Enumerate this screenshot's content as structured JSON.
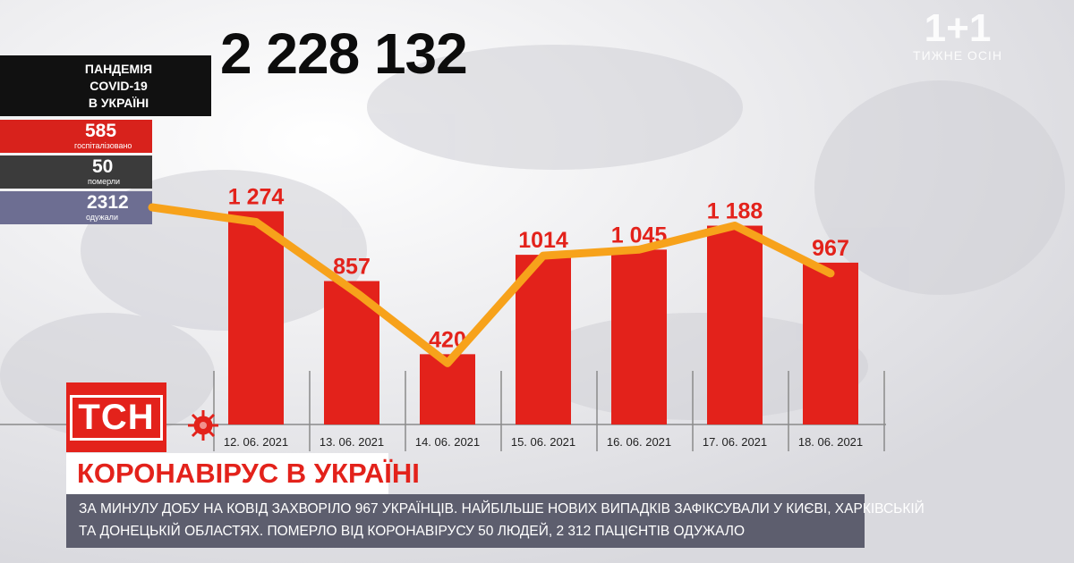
{
  "panel": {
    "heading_lines": [
      "ПАНДЕМІЯ",
      "COVID-19",
      "В УКРАЇНІ"
    ],
    "hospitalized_value": "585",
    "hospitalized_label": "госпіталізовано",
    "died_value": "50",
    "died_label": "померли",
    "recovered_value": "2312",
    "recovered_label": "одужали"
  },
  "total_cases": "2 228 132",
  "channel_logo": {
    "mark": "1+1",
    "caption": "ТИЖНЕ ОСІН"
  },
  "tsn_logo": "ТСН",
  "headline": "КОРОНАВІРУС В УКРАЇНІ",
  "caption_lines": [
    "ЗА МИНУЛУ ДОБУ НА КОВІД ЗАХВОРІЛО 967 УКРАЇНЦІВ. НАЙБІЛЬШЕ НОВИХ ВИПАДКІВ ЗАФІКСУВАЛИ У КИЄВІ, ХАРКІВСЬКІЙ",
    "ТА ДОНЕЦЬКІЙ ОБЛАСТЯХ. ПОМЕРЛО ВІД КОРОНАВІРУСУ 50 ЛЮДЕЙ, 2 312 ПАЦІЄНТІВ ОДУЖАЛО"
  ],
  "colors": {
    "bar": "#e3221b",
    "line": "#f7a21b",
    "panel_dark": "#111111",
    "panel_red": "#d8221c",
    "panel_gray": "#3b3b3b",
    "panel_blue": "#6d6e92",
    "caption_bg": "#5d5e6e",
    "headline": "#e3221b"
  },
  "chart_data": {
    "type": "bar",
    "categories": [
      "12. 06. 2021",
      "13. 06. 2021",
      "14. 06. 2021",
      "15. 06. 2021",
      "16. 06. 2021",
      "17. 06. 2021",
      "18. 06. 2021"
    ],
    "values": [
      1274,
      857,
      420,
      1014,
      1045,
      1188,
      967
    ],
    "value_labels": [
      "1 274",
      "857",
      "420",
      "1014",
      "1 045",
      "1 188",
      "967"
    ],
    "overlay_line": "trend line through bar tops",
    "ylim": [
      0,
      1500
    ]
  }
}
